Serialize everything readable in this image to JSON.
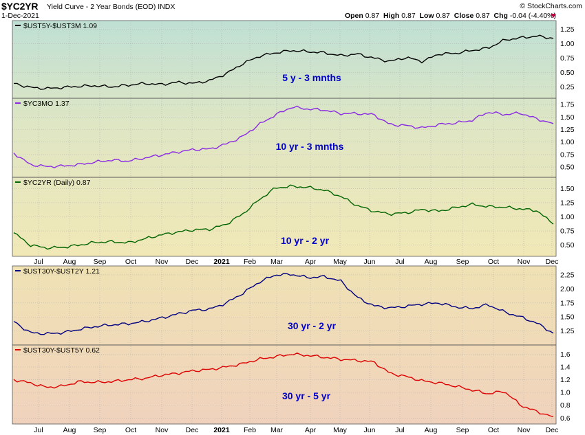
{
  "header": {
    "ticker": "$YC2YR",
    "subtitle": "Yield Curve - 2 Year Bonds (EOD)",
    "exchange": "INDX",
    "date": "1-Dec-2021",
    "brand": "© StockCharts.com",
    "ohlc": {
      "open_label": "Open",
      "open": "0.87",
      "high_label": "High",
      "high": "0.87",
      "low_label": "Low",
      "low": "0.87",
      "close_label": "Close",
      "close": "0.87",
      "chg_label": "Chg",
      "chg": "-0.04 (-4.40%)"
    }
  },
  "colors": {
    "down_arrow": "#c00040",
    "label_blue": "#0000cc"
  },
  "chart_data": [
    {
      "type": "line",
      "series": [
        {
          "name": "$UST5Y-$UST3M 1.09",
          "color": "#000000",
          "values": [
            0.31,
            0.24,
            0.22,
            0.24,
            0.26,
            0.27,
            0.25,
            0.28,
            0.31,
            0.29,
            0.33,
            0.31,
            0.36,
            0.48,
            0.65,
            0.78,
            0.84,
            0.88,
            0.86,
            0.84,
            0.79,
            0.82,
            0.75,
            0.69,
            0.76,
            0.69,
            0.82,
            0.83,
            0.88,
            0.92,
            1.06,
            1.1,
            1.13,
            1.09
          ]
        }
      ],
      "x": [
        "2020-06",
        "2020-06-15",
        "2020-07",
        "2020-07-15",
        "2020-08",
        "2020-08-15",
        "2020-09",
        "2020-09-15",
        "2020-10",
        "2020-10-15",
        "2020-11",
        "2020-11-15",
        "2020-12",
        "2020-12-15",
        "2021-01",
        "2021-01-15",
        "2021-02",
        "2021-02-15",
        "2021-03",
        "2021-03-15",
        "2021-04",
        "2021-04-15",
        "2021-05",
        "2021-05-15",
        "2021-06",
        "2021-06-15",
        "2021-07",
        "2021-07-15",
        "2021-08",
        "2021-08-15",
        "2021-09",
        "2021-09-15",
        "2021-10",
        "2021-12"
      ],
      "label": "5 y - 3 mnths",
      "yticks": [
        "0.25",
        "0.50",
        "0.75",
        "1.00",
        "1.25"
      ],
      "ylim": [
        0.1,
        1.35
      ]
    },
    {
      "type": "line",
      "series": [
        {
          "name": "$YC3MO 1.37",
          "color": "#8a2be2",
          "values": [
            0.78,
            0.55,
            0.51,
            0.52,
            0.55,
            0.6,
            0.64,
            0.62,
            0.68,
            0.74,
            0.8,
            0.85,
            0.86,
            0.96,
            1.11,
            1.35,
            1.54,
            1.7,
            1.66,
            1.64,
            1.57,
            1.57,
            1.55,
            1.35,
            1.33,
            1.28,
            1.35,
            1.38,
            1.43,
            1.6,
            1.55,
            1.58,
            1.46,
            1.37
          ]
        }
      ],
      "label": "10 yr - 3 mnths",
      "yticks": [
        "0.50",
        "0.75",
        "1.00",
        "1.25",
        "1.50",
        "1.75"
      ],
      "ylim": [
        0.35,
        1.82
      ]
    },
    {
      "type": "line",
      "series": [
        {
          "name": "$YC2YR (Daily) 0.87",
          "color": "#006400",
          "values": [
            0.72,
            0.5,
            0.45,
            0.46,
            0.5,
            0.55,
            0.56,
            0.54,
            0.61,
            0.68,
            0.73,
            0.77,
            0.78,
            0.87,
            1.05,
            1.3,
            1.51,
            1.54,
            1.52,
            1.47,
            1.36,
            1.2,
            1.1,
            1.05,
            1.07,
            1.13,
            1.1,
            1.16,
            1.22,
            1.18,
            1.17,
            1.14,
            1.11,
            0.87
          ]
        }
      ],
      "label": "10 yr - 2 yr",
      "yticks": [
        "0.50",
        "0.75",
        "1.00",
        "1.25",
        "1.50"
      ],
      "ylim": [
        0.35,
        1.65
      ]
    },
    {
      "type": "line",
      "series": [
        {
          "name": "$UST30Y-$UST2Y 1.21",
          "color": "#000080",
          "values": [
            1.42,
            1.22,
            1.2,
            1.22,
            1.28,
            1.33,
            1.36,
            1.38,
            1.42,
            1.48,
            1.55,
            1.62,
            1.64,
            1.75,
            1.92,
            2.12,
            2.25,
            2.26,
            2.2,
            2.22,
            2.14,
            1.85,
            1.7,
            1.66,
            1.69,
            1.73,
            1.75,
            1.68,
            1.65,
            1.72,
            1.59,
            1.5,
            1.39,
            1.21
          ]
        }
      ],
      "label": "30 yr - 2 yr",
      "yticks": [
        "1.25",
        "1.50",
        "1.75",
        "2.00",
        "2.25"
      ],
      "ylim": [
        1.05,
        2.36
      ]
    },
    {
      "type": "line",
      "series": [
        {
          "name": "$UST30Y-$UST5Y 0.62",
          "color": "#dd0000",
          "values": [
            1.2,
            1.15,
            1.08,
            1.1,
            1.17,
            1.16,
            1.17,
            1.2,
            1.22,
            1.27,
            1.3,
            1.34,
            1.36,
            1.4,
            1.45,
            1.52,
            1.56,
            1.6,
            1.58,
            1.55,
            1.52,
            1.5,
            1.48,
            1.3,
            1.25,
            1.18,
            1.15,
            1.1,
            1.04,
            0.98,
            1.02,
            0.8,
            0.7,
            0.62
          ]
        }
      ],
      "label": "30 yr - 5 yr",
      "yticks": [
        "0.6",
        "0.8",
        "1.0",
        "1.2",
        "1.4",
        "1.6"
      ],
      "ylim": [
        0.55,
        1.7
      ]
    }
  ],
  "x_axis": {
    "months_a": [
      "Jul",
      "Aug",
      "Sep",
      "Oct",
      "Nov",
      "Dec",
      "2021",
      "Feb",
      "Mar",
      "Apr",
      "May",
      "Jun",
      "Jul",
      "Aug",
      "Sep",
      "Oct",
      "Nov",
      "Dec"
    ],
    "months_b": [
      "Jul",
      "Aug",
      "Sep",
      "Oct",
      "Nov",
      "Dec",
      "2021",
      "Feb",
      "Mar",
      "Apr",
      "May",
      "Jun",
      "Jul",
      "Aug",
      "Sep",
      "Oct",
      "Nov",
      "Dec"
    ]
  }
}
